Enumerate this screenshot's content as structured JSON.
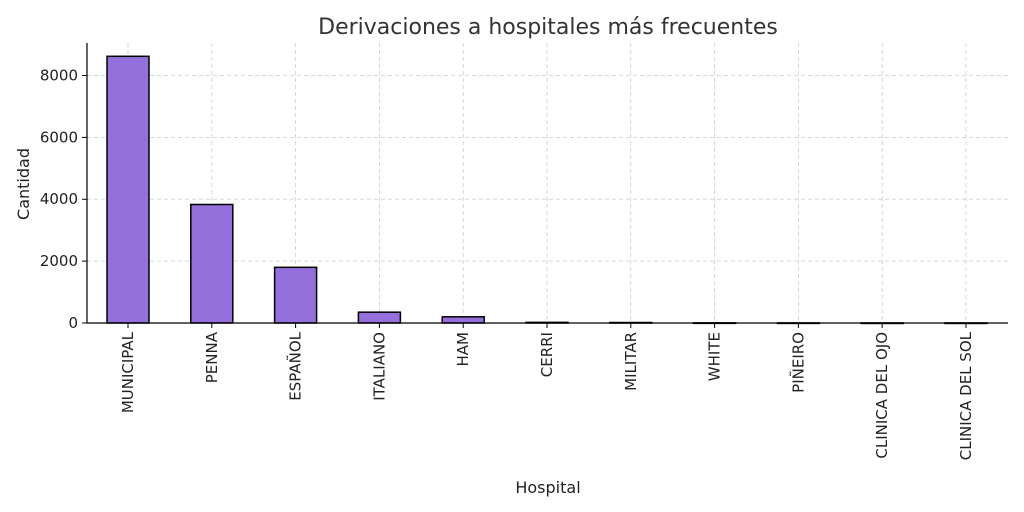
{
  "chart_data": {
    "type": "bar",
    "title": "Derivaciones a hospitales más frecuentes",
    "xlabel": "Hospital",
    "ylabel": "Cantidad",
    "categories": [
      "MUNICIPAL",
      "PENNA",
      "ESPAÑOL",
      "ITALIANO",
      "HAM",
      "CERRI",
      "MILITAR",
      "WHITE",
      "PIÑEIRO",
      "CLINICA DEL OJO",
      "CLINICA DEL SOL"
    ],
    "values": [
      8620,
      3830,
      1800,
      350,
      200,
      20,
      15,
      5,
      3,
      2,
      2
    ],
    "ylim": [
      0,
      9050
    ],
    "yticks": [
      0,
      2000,
      4000,
      6000,
      8000
    ],
    "grid": true,
    "bar_color": "#9370DB",
    "bar_edge_color": "#000000",
    "grid_color": "#cccccc"
  }
}
